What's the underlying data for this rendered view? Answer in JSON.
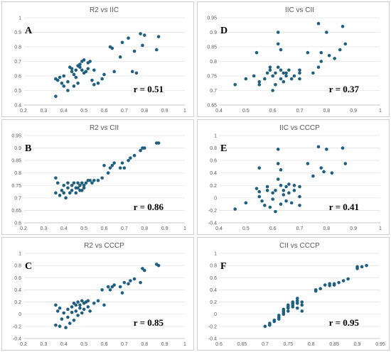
{
  "figure": {
    "marker_color": "#1f5f7f",
    "background": "#ffffff"
  },
  "chart_data": [
    {
      "type": "scatter",
      "label": "A",
      "title": "R2 vs IIC",
      "r": "r = 0.51",
      "xlim": [
        0.2,
        1.0
      ],
      "xticks": [
        "0.2",
        "0.3",
        "0.4",
        "0.5",
        "0.6",
        "0.7",
        "0.8",
        "0.9",
        "1"
      ],
      "ylim": [
        0.4,
        1.0
      ],
      "yticks": [
        "0.4",
        "0.5",
        "0.6",
        "0.7",
        "0.8",
        "0.9",
        "1"
      ],
      "grid": true,
      "points": [
        [
          0.36,
          0.46
        ],
        [
          0.36,
          0.58
        ],
        [
          0.37,
          0.57
        ],
        [
          0.38,
          0.59
        ],
        [
          0.39,
          0.55
        ],
        [
          0.4,
          0.6
        ],
        [
          0.4,
          0.53
        ],
        [
          0.42,
          0.5
        ],
        [
          0.42,
          0.56
        ],
        [
          0.43,
          0.66
        ],
        [
          0.44,
          0.65
        ],
        [
          0.44,
          0.63
        ],
        [
          0.45,
          0.53
        ],
        [
          0.45,
          0.61
        ],
        [
          0.46,
          0.64
        ],
        [
          0.46,
          0.59
        ],
        [
          0.47,
          0.55
        ],
        [
          0.47,
          0.67
        ],
        [
          0.48,
          0.68
        ],
        [
          0.48,
          0.66
        ],
        [
          0.49,
          0.7
        ],
        [
          0.49,
          0.64
        ],
        [
          0.5,
          0.71
        ],
        [
          0.5,
          0.62
        ],
        [
          0.51,
          0.63
        ],
        [
          0.52,
          0.69
        ],
        [
          0.52,
          0.65
        ],
        [
          0.53,
          0.7
        ],
        [
          0.54,
          0.57
        ],
        [
          0.55,
          0.64
        ],
        [
          0.55,
          0.54
        ],
        [
          0.57,
          0.55
        ],
        [
          0.59,
          0.58
        ],
        [
          0.6,
          0.61
        ],
        [
          0.63,
          0.8
        ],
        [
          0.64,
          0.79
        ],
        [
          0.65,
          0.63
        ],
        [
          0.68,
          0.73
        ],
        [
          0.69,
          0.83
        ],
        [
          0.72,
          0.86
        ],
        [
          0.74,
          0.63
        ],
        [
          0.75,
          0.77
        ],
        [
          0.76,
          0.62
        ],
        [
          0.78,
          0.89
        ],
        [
          0.79,
          0.81
        ],
        [
          0.8,
          0.88
        ],
        [
          0.86,
          0.78
        ],
        [
          0.87,
          0.87
        ]
      ]
    },
    {
      "type": "scatter",
      "label": "D",
      "title": "IIC vs CII",
      "r": "r = 0.37",
      "xlim": [
        0.4,
        1.0
      ],
      "xticks": [
        "0.4",
        "0.5",
        "0.6",
        "0.7",
        "0.8",
        "0.9",
        "1"
      ],
      "ylim": [
        0.65,
        0.95
      ],
      "yticks": [
        "0.65",
        "0.7",
        "0.75",
        "0.8",
        "0.85",
        "0.9",
        "0.95"
      ],
      "grid": true,
      "points": [
        [
          0.46,
          0.72
        ],
        [
          0.5,
          0.74
        ],
        [
          0.53,
          0.75
        ],
        [
          0.54,
          0.83
        ],
        [
          0.55,
          0.72
        ],
        [
          0.55,
          0.73
        ],
        [
          0.57,
          0.74
        ],
        [
          0.58,
          0.76
        ],
        [
          0.59,
          0.77
        ],
        [
          0.59,
          0.78
        ],
        [
          0.6,
          0.7
        ],
        [
          0.6,
          0.75
        ],
        [
          0.61,
          0.76
        ],
        [
          0.61,
          0.72
        ],
        [
          0.62,
          0.9
        ],
        [
          0.62,
          0.86
        ],
        [
          0.62,
          0.78
        ],
        [
          0.63,
          0.84
        ],
        [
          0.63,
          0.74
        ],
        [
          0.63,
          0.77
        ],
        [
          0.64,
          0.76
        ],
        [
          0.64,
          0.73
        ],
        [
          0.65,
          0.76
        ],
        [
          0.65,
          0.75
        ],
        [
          0.66,
          0.77
        ],
        [
          0.67,
          0.74
        ],
        [
          0.68,
          0.75
        ],
        [
          0.7,
          0.74
        ],
        [
          0.7,
          0.76
        ],
        [
          0.7,
          0.77
        ],
        [
          0.73,
          0.83
        ],
        [
          0.75,
          0.76
        ],
        [
          0.77,
          0.78
        ],
        [
          0.77,
          0.93
        ],
        [
          0.78,
          0.8
        ],
        [
          0.78,
          0.83
        ],
        [
          0.8,
          0.9
        ],
        [
          0.81,
          0.82
        ],
        [
          0.83,
          0.81
        ],
        [
          0.85,
          0.84
        ],
        [
          0.86,
          0.92
        ],
        [
          0.87,
          0.86
        ]
      ]
    },
    {
      "type": "scatter",
      "label": "B",
      "title": "R2 vs CII",
      "r": "r = 0.86",
      "xlim": [
        0.2,
        1.0
      ],
      "xticks": [
        "0.2",
        "0.3",
        "0.4",
        "0.5",
        "0.6",
        "0.7",
        "0.8",
        "0.9",
        "1"
      ],
      "ylim": [
        0.6,
        0.95
      ],
      "yticks": [
        "0.6",
        "0.65",
        "0.7",
        "0.75",
        "0.8",
        "0.85",
        "0.9",
        "0.95"
      ],
      "grid": true,
      "points": [
        [
          0.36,
          0.72
        ],
        [
          0.36,
          0.78
        ],
        [
          0.37,
          0.76
        ],
        [
          0.38,
          0.71
        ],
        [
          0.39,
          0.73
        ],
        [
          0.4,
          0.75
        ],
        [
          0.4,
          0.72
        ],
        [
          0.41,
          0.7
        ],
        [
          0.42,
          0.74
        ],
        [
          0.42,
          0.76
        ],
        [
          0.43,
          0.72
        ],
        [
          0.44,
          0.75
        ],
        [
          0.44,
          0.73
        ],
        [
          0.45,
          0.76
        ],
        [
          0.46,
          0.74
        ],
        [
          0.46,
          0.72
        ],
        [
          0.47,
          0.76
        ],
        [
          0.47,
          0.74
        ],
        [
          0.48,
          0.75
        ],
        [
          0.48,
          0.73
        ],
        [
          0.49,
          0.76
        ],
        [
          0.49,
          0.73
        ],
        [
          0.5,
          0.75
        ],
        [
          0.5,
          0.74
        ],
        [
          0.51,
          0.76
        ],
        [
          0.52,
          0.77
        ],
        [
          0.53,
          0.77
        ],
        [
          0.54,
          0.76
        ],
        [
          0.55,
          0.77
        ],
        [
          0.57,
          0.77
        ],
        [
          0.59,
          0.78
        ],
        [
          0.6,
          0.83
        ],
        [
          0.62,
          0.8
        ],
        [
          0.63,
          0.82
        ],
        [
          0.64,
          0.83
        ],
        [
          0.65,
          0.84
        ],
        [
          0.68,
          0.82
        ],
        [
          0.69,
          0.84
        ],
        [
          0.7,
          0.82
        ],
        [
          0.72,
          0.85
        ],
        [
          0.73,
          0.86
        ],
        [
          0.75,
          0.87
        ],
        [
          0.78,
          0.89
        ],
        [
          0.79,
          0.9
        ],
        [
          0.8,
          0.9
        ],
        [
          0.86,
          0.92
        ],
        [
          0.87,
          0.92
        ]
      ]
    },
    {
      "type": "scatter",
      "label": "E",
      "title": "IIC vs CCCP",
      "r": "r = 0.41",
      "xlim": [
        0.4,
        1.0
      ],
      "xticks": [
        "0.4",
        "0.5",
        "0.6",
        "0.7",
        "0.8",
        "0.9",
        "1"
      ],
      "ylim": [
        -0.4,
        1.0
      ],
      "yticks": [
        "-0.4",
        "-0.2",
        "0",
        "0.2",
        "0.4",
        "0.6",
        "0.8",
        "1"
      ],
      "grid": true,
      "points": [
        [
          0.46,
          -0.18
        ],
        [
          0.5,
          -0.08
        ],
        [
          0.54,
          0.15
        ],
        [
          0.55,
          0.48
        ],
        [
          0.55,
          0.1
        ],
        [
          0.55,
          0.02
        ],
        [
          0.56,
          -0.05
        ],
        [
          0.57,
          -0.12
        ],
        [
          0.58,
          0.18
        ],
        [
          0.58,
          0.12
        ],
        [
          0.59,
          -0.15
        ],
        [
          0.6,
          0.08
        ],
        [
          0.6,
          -0.02
        ],
        [
          0.61,
          -0.22
        ],
        [
          0.61,
          0.12
        ],
        [
          0.62,
          0.78
        ],
        [
          0.62,
          0.55
        ],
        [
          0.62,
          0.3
        ],
        [
          0.63,
          0.45
        ],
        [
          0.63,
          0.2
        ],
        [
          0.63,
          -0.1
        ],
        [
          0.64,
          0.05
        ],
        [
          0.64,
          0.12
        ],
        [
          0.65,
          0.18
        ],
        [
          0.65,
          -0.05
        ],
        [
          0.66,
          0.22
        ],
        [
          0.66,
          0.08
        ],
        [
          0.67,
          -0.08
        ],
        [
          0.68,
          0.12
        ],
        [
          0.68,
          0.2
        ],
        [
          0.7,
          0.02
        ],
        [
          0.7,
          0.18
        ],
        [
          0.7,
          -0.12
        ],
        [
          0.73,
          0.55
        ],
        [
          0.75,
          0.35
        ],
        [
          0.77,
          0.82
        ],
        [
          0.78,
          0.48
        ],
        [
          0.79,
          0.42
        ],
        [
          0.8,
          0.78
        ],
        [
          0.82,
          0.4
        ],
        [
          0.86,
          0.8
        ],
        [
          0.87,
          0.55
        ]
      ]
    },
    {
      "type": "scatter",
      "label": "C",
      "title": "R2 vs CCCP",
      "r": "r = 0.85",
      "xlim": [
        0.2,
        1.0
      ],
      "xticks": [
        "0.2",
        "0.3",
        "0.4",
        "0.5",
        "0.6",
        "0.7",
        "0.8",
        "0.9",
        "1"
      ],
      "ylim": [
        -0.4,
        1.0
      ],
      "yticks": [
        "-0.4",
        "-0.2",
        "0",
        "0.2",
        "0.4",
        "0.6",
        "0.8",
        "1"
      ],
      "grid": true,
      "points": [
        [
          0.36,
          -0.18
        ],
        [
          0.36,
          0.15
        ],
        [
          0.37,
          0.05
        ],
        [
          0.38,
          -0.2
        ],
        [
          0.38,
          0.1
        ],
        [
          0.39,
          -0.08
        ],
        [
          0.4,
          0.02
        ],
        [
          0.41,
          -0.22
        ],
        [
          0.42,
          -0.05
        ],
        [
          0.42,
          0.08
        ],
        [
          0.43,
          -0.15
        ],
        [
          0.44,
          0.03
        ],
        [
          0.44,
          0.12
        ],
        [
          0.45,
          -0.1
        ],
        [
          0.45,
          0.18
        ],
        [
          0.46,
          0.05
        ],
        [
          0.46,
          0.15
        ],
        [
          0.47,
          -0.02
        ],
        [
          0.47,
          0.2
        ],
        [
          0.48,
          0.1
        ],
        [
          0.48,
          0.15
        ],
        [
          0.49,
          0.02
        ],
        [
          0.49,
          0.22
        ],
        [
          0.5,
          0.18
        ],
        [
          0.5,
          0.08
        ],
        [
          0.51,
          0.2
        ],
        [
          0.52,
          0.12
        ],
        [
          0.52,
          0.22
        ],
        [
          0.53,
          0.05
        ],
        [
          0.55,
          0.18
        ],
        [
          0.57,
          0.22
        ],
        [
          0.59,
          0.4
        ],
        [
          0.6,
          0.15
        ],
        [
          0.62,
          0.45
        ],
        [
          0.63,
          0.4
        ],
        [
          0.64,
          0.45
        ],
        [
          0.65,
          0.48
        ],
        [
          0.68,
          0.45
        ],
        [
          0.69,
          0.35
        ],
        [
          0.7,
          0.52
        ],
        [
          0.72,
          0.5
        ],
        [
          0.73,
          0.55
        ],
        [
          0.75,
          0.58
        ],
        [
          0.78,
          0.52
        ],
        [
          0.79,
          0.75
        ],
        [
          0.8,
          0.72
        ],
        [
          0.86,
          0.82
        ],
        [
          0.87,
          0.8
        ]
      ]
    },
    {
      "type": "scatter",
      "label": "F",
      "title": "CII vs CCCP",
      "r": "r = 0.95",
      "xlim": [
        0.6,
        0.95
      ],
      "xticks": [
        "0.6",
        "0.65",
        "0.7",
        "0.75",
        "0.8",
        "0.85",
        "0.9",
        "0.95"
      ],
      "ylim": [
        -0.4,
        1.0
      ],
      "yticks": [
        "-0.4",
        "-0.2",
        "0",
        "0.2",
        "0.4",
        "0.6",
        "0.8",
        "1"
      ],
      "grid": true,
      "points": [
        [
          0.7,
          -0.2
        ],
        [
          0.71,
          -0.15
        ],
        [
          0.71,
          -0.18
        ],
        [
          0.72,
          -0.12
        ],
        [
          0.72,
          -0.1
        ],
        [
          0.73,
          -0.05
        ],
        [
          0.73,
          -0.08
        ],
        [
          0.73,
          -0.02
        ],
        [
          0.74,
          0.0
        ],
        [
          0.74,
          0.02
        ],
        [
          0.74,
          0.05
        ],
        [
          0.74,
          0.08
        ],
        [
          0.75,
          0.05
        ],
        [
          0.75,
          0.1
        ],
        [
          0.75,
          0.12
        ],
        [
          0.75,
          0.15
        ],
        [
          0.76,
          0.12
        ],
        [
          0.76,
          0.18
        ],
        [
          0.76,
          0.2
        ],
        [
          0.76,
          0.15
        ],
        [
          0.77,
          0.18
        ],
        [
          0.77,
          0.22
        ],
        [
          0.77,
          0.1
        ],
        [
          0.77,
          0.26
        ],
        [
          0.78,
          0.05
        ],
        [
          0.78,
          0.15
        ],
        [
          0.78,
          0.2
        ],
        [
          0.81,
          0.38
        ],
        [
          0.81,
          0.4
        ],
        [
          0.82,
          0.42
        ],
        [
          0.83,
          0.48
        ],
        [
          0.84,
          0.47
        ],
        [
          0.84,
          0.5
        ],
        [
          0.85,
          0.48
        ],
        [
          0.85,
          0.5
        ],
        [
          0.86,
          0.52
        ],
        [
          0.87,
          0.55
        ],
        [
          0.88,
          0.58
        ],
        [
          0.9,
          0.78
        ],
        [
          0.9,
          0.75
        ],
        [
          0.91,
          0.78
        ],
        [
          0.92,
          0.8
        ]
      ]
    }
  ]
}
